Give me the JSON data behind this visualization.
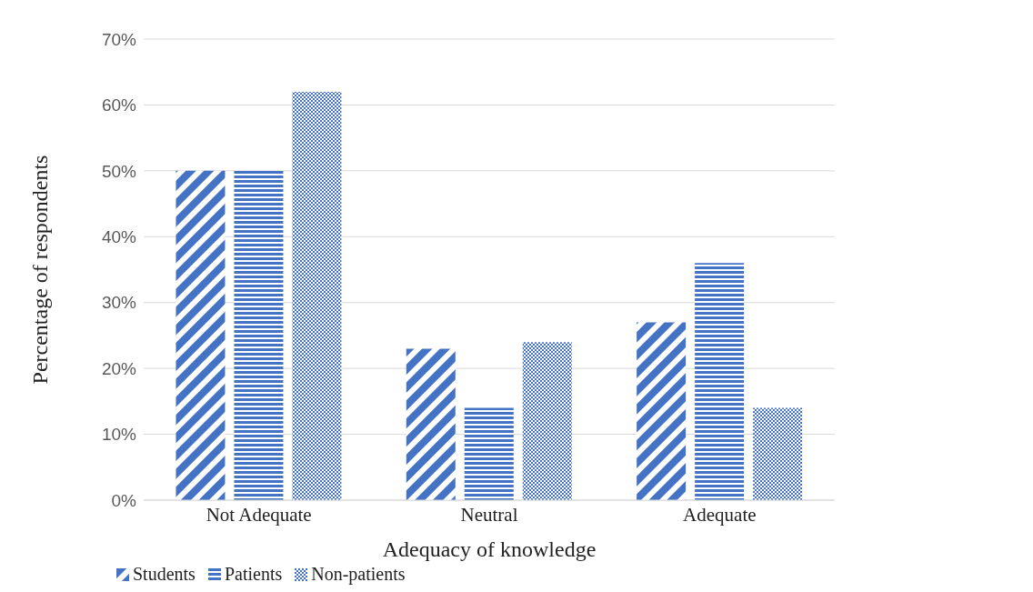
{
  "chart_data": {
    "type": "bar",
    "xlabel": "Adequacy of knowledge",
    "ylabel": "Percentage of respondents",
    "categories": [
      "Not Adequate",
      "Neutral",
      "Adequate"
    ],
    "series": [
      {
        "name": "Students",
        "color": "#4472c4",
        "values": [
          50,
          23,
          27
        ]
      },
      {
        "name": "Patients",
        "color": "#4472c4",
        "values": [
          50,
          14,
          36
        ]
      },
      {
        "name": "Non-patients",
        "color": "#4472c4",
        "values": [
          62,
          24,
          14
        ]
      }
    ],
    "ylim": [
      0,
      70
    ],
    "yticks": [
      {
        "value": 0,
        "label": "0%"
      },
      {
        "value": 10,
        "label": "10%"
      },
      {
        "value": 20,
        "label": "20%"
      },
      {
        "value": 30,
        "label": "30%"
      },
      {
        "value": 40,
        "label": "40%"
      },
      {
        "value": 50,
        "label": "50%"
      },
      {
        "value": 60,
        "label": "60%"
      },
      {
        "value": 70,
        "label": "70%"
      }
    ],
    "grid": "y",
    "legend": "bottom left"
  }
}
